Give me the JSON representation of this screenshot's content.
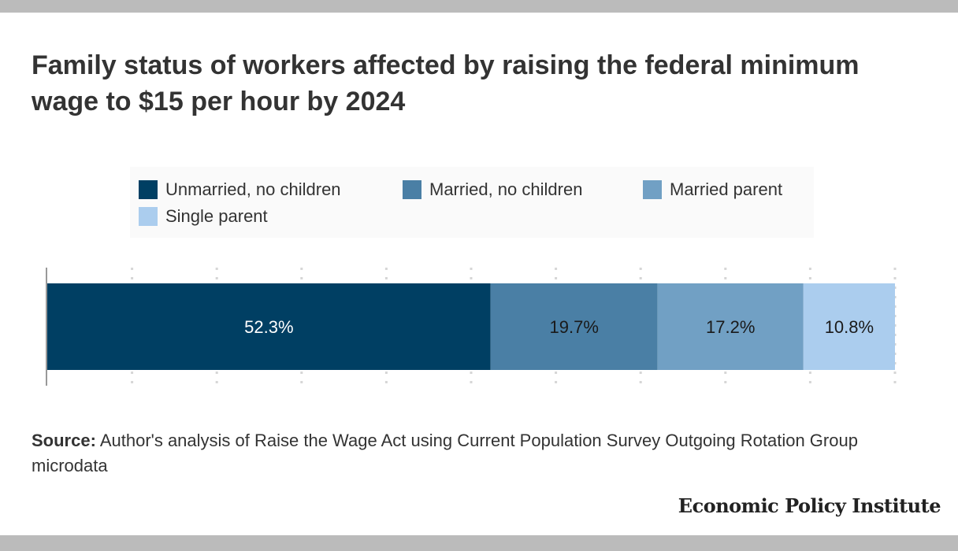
{
  "title": "Family status of workers affected by raising the federal minimum wage to $15 per hour by 2024",
  "legend": [
    {
      "label": "Unmarried, no children",
      "color": "#003f63"
    },
    {
      "label": "Married, no children",
      "color": "#4a7fa5"
    },
    {
      "label": "Married parent",
      "color": "#71a0c4"
    },
    {
      "label": "Single parent",
      "color": "#abcdee"
    }
  ],
  "chart_data": {
    "type": "bar",
    "orientation": "horizontal",
    "stacked": true,
    "categories": [
      ""
    ],
    "series": [
      {
        "name": "Unmarried, no children",
        "values": [
          52.3
        ],
        "label": "52.3%",
        "color": "#003f63",
        "label_color": "#ffffff"
      },
      {
        "name": "Married, no children",
        "values": [
          19.7
        ],
        "label": "19.7%",
        "color": "#4a7fa5",
        "label_color": "#1a1a1a"
      },
      {
        "name": "Married parent",
        "values": [
          17.2
        ],
        "label": "17.2%",
        "color": "#71a0c4",
        "label_color": "#1a1a1a"
      },
      {
        "name": "Single parent",
        "values": [
          10.8
        ],
        "label": "10.8%",
        "color": "#abcdee",
        "label_color": "#1a1a1a"
      }
    ],
    "xlim": [
      0,
      100
    ],
    "grid": true,
    "title": "Family status of workers affected by raising the federal minimum wage to $15 per hour by 2024",
    "xlabel": "",
    "ylabel": ""
  },
  "source": {
    "label": "Source:",
    "text": " Author's analysis of Raise the Wage Act using Current Population Survey Outgoing Rotation Group microdata"
  },
  "brand": "Economic Policy Institute"
}
